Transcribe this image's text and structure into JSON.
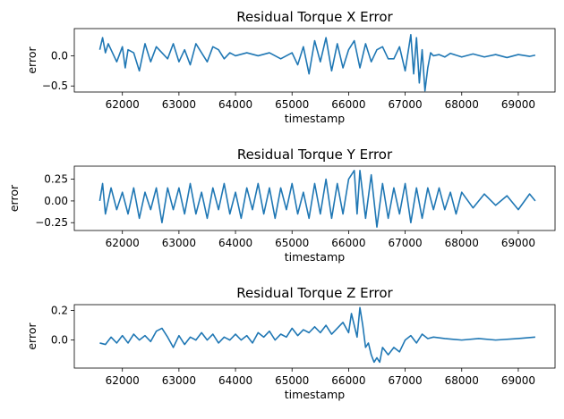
{
  "chart_data": [
    {
      "type": "line",
      "title": "Residual Torque X Error",
      "xlabel": "timestamp",
      "ylabel": "error",
      "xlim": [
        61150,
        69650
      ],
      "ylim": [
        -0.6,
        0.45
      ],
      "xticks": [
        62000,
        63000,
        64000,
        65000,
        66000,
        67000,
        68000,
        69000
      ],
      "yticks": [
        -0.5,
        0.0
      ],
      "ytick_labels": [
        "−0.5",
        "0.0"
      ],
      "grid": false,
      "color": "#1f77b4",
      "series": [
        {
          "x": [
            61600,
            61650,
            61700,
            61750,
            61800,
            61900,
            62000,
            62050,
            62100,
            62200,
            62300,
            62400,
            62500,
            62600,
            62700,
            62800,
            62900,
            63000,
            63100,
            63200,
            63300,
            63400,
            63500,
            63600,
            63700,
            63800,
            63900,
            64000,
            64200,
            64400,
            64600,
            64800,
            65000,
            65100,
            65200,
            65300,
            65400,
            65500,
            65600,
            65700,
            65800,
            65900,
            66000,
            66100,
            66200,
            66300,
            66400,
            66500,
            66600,
            66700,
            66800,
            66900,
            67000,
            67100,
            67150,
            67200,
            67250,
            67300,
            67350,
            67400,
            67450,
            67500,
            67600,
            67700,
            67800,
            68000,
            68200,
            68400,
            68600,
            68800,
            69000,
            69200,
            69300
          ],
          "y": [
            0.1,
            0.3,
            0.05,
            0.2,
            0.1,
            -0.1,
            0.15,
            -0.2,
            0.1,
            0.05,
            -0.25,
            0.2,
            -0.1,
            0.15,
            0.05,
            -0.05,
            0.2,
            -0.1,
            0.1,
            -0.15,
            0.2,
            0.05,
            -0.1,
            0.15,
            0.1,
            -0.05,
            0.05,
            0.0,
            0.05,
            0.0,
            0.05,
            -0.05,
            0.05,
            -0.15,
            0.15,
            -0.3,
            0.25,
            -0.1,
            0.3,
            -0.25,
            0.2,
            -0.2,
            0.1,
            0.25,
            -0.2,
            0.2,
            -0.1,
            0.1,
            0.15,
            -0.05,
            -0.05,
            0.15,
            -0.25,
            0.35,
            -0.3,
            0.3,
            -0.45,
            0.1,
            -0.58,
            -0.2,
            0.05,
            0.0,
            0.02,
            -0.02,
            0.04,
            -0.02,
            0.03,
            -0.02,
            0.02,
            -0.03,
            0.02,
            -0.01,
            0.01
          ]
        }
      ]
    },
    {
      "type": "line",
      "title": "Residual Torque Y Error",
      "xlabel": "timestamp",
      "ylabel": "error",
      "xlim": [
        61150,
        69650
      ],
      "ylim": [
        -0.34,
        0.4
      ],
      "xticks": [
        62000,
        63000,
        64000,
        65000,
        66000,
        67000,
        68000,
        69000
      ],
      "yticks": [
        -0.25,
        0.0,
        0.25
      ],
      "ytick_labels": [
        "−0.25",
        "0.00",
        "0.25"
      ],
      "grid": false,
      "color": "#1f77b4",
      "series": [
        {
          "x": [
            61600,
            61650,
            61700,
            61800,
            61900,
            62000,
            62100,
            62200,
            62300,
            62400,
            62500,
            62600,
            62700,
            62800,
            62900,
            63000,
            63100,
            63200,
            63300,
            63400,
            63500,
            63600,
            63700,
            63800,
            63900,
            64000,
            64100,
            64200,
            64300,
            64400,
            64500,
            64600,
            64700,
            64800,
            64900,
            65000,
            65100,
            65200,
            65300,
            65400,
            65500,
            65600,
            65700,
            65800,
            65900,
            66000,
            66100,
            66150,
            66200,
            66300,
            66400,
            66500,
            66600,
            66700,
            66800,
            66900,
            67000,
            67100,
            67200,
            67300,
            67400,
            67500,
            67600,
            67700,
            67800,
            67900,
            68000,
            68200,
            68400,
            68600,
            68800,
            69000,
            69200,
            69300
          ],
          "y": [
            0.0,
            0.2,
            -0.15,
            0.15,
            -0.1,
            0.1,
            -0.15,
            0.15,
            -0.2,
            0.1,
            -0.1,
            0.15,
            -0.25,
            0.15,
            -0.1,
            0.15,
            -0.15,
            0.2,
            -0.15,
            0.1,
            -0.2,
            0.15,
            -0.1,
            0.2,
            -0.15,
            0.1,
            -0.2,
            0.15,
            -0.1,
            0.2,
            -0.15,
            0.15,
            -0.2,
            0.15,
            -0.1,
            0.2,
            -0.15,
            0.1,
            -0.2,
            0.2,
            -0.15,
            0.25,
            -0.2,
            0.2,
            -0.15,
            0.25,
            0.35,
            -0.15,
            0.35,
            -0.2,
            0.3,
            -0.3,
            0.2,
            -0.2,
            0.15,
            -0.15,
            0.2,
            -0.25,
            0.15,
            -0.2,
            0.15,
            -0.1,
            0.15,
            -0.1,
            0.1,
            -0.15,
            0.1,
            -0.08,
            0.08,
            -0.05,
            0.06,
            -0.1,
            0.08,
            0.0
          ]
        }
      ]
    },
    {
      "type": "line",
      "title": "Residual Torque Z Error",
      "xlabel": "timestamp",
      "ylabel": "error",
      "xlim": [
        61150,
        69650
      ],
      "ylim": [
        -0.19,
        0.24
      ],
      "xticks": [
        62000,
        63000,
        64000,
        65000,
        66000,
        67000,
        68000,
        69000
      ],
      "yticks": [
        0.0,
        0.2
      ],
      "ytick_labels": [
        "0.0",
        "0.2"
      ],
      "grid": false,
      "color": "#1f77b4",
      "series": [
        {
          "x": [
            61600,
            61700,
            61800,
            61900,
            62000,
            62100,
            62200,
            62300,
            62400,
            62500,
            62600,
            62700,
            62800,
            62900,
            63000,
            63100,
            63200,
            63300,
            63400,
            63500,
            63600,
            63700,
            63800,
            63900,
            64000,
            64100,
            64200,
            64300,
            64400,
            64500,
            64600,
            64700,
            64800,
            64900,
            65000,
            65100,
            65200,
            65300,
            65400,
            65500,
            65600,
            65700,
            65800,
            65900,
            66000,
            66050,
            66100,
            66150,
            66200,
            66250,
            66300,
            66350,
            66400,
            66450,
            66500,
            66550,
            66600,
            66700,
            66800,
            66900,
            67000,
            67100,
            67200,
            67300,
            67400,
            67500,
            67700,
            68000,
            68300,
            68600,
            69000,
            69300
          ],
          "y": [
            -0.02,
            -0.03,
            0.02,
            -0.02,
            0.03,
            -0.02,
            0.04,
            0.0,
            0.03,
            -0.01,
            0.06,
            0.08,
            0.02,
            -0.05,
            0.03,
            -0.03,
            0.02,
            0.0,
            0.05,
            0.0,
            0.04,
            -0.02,
            0.02,
            0.0,
            0.04,
            0.0,
            0.03,
            -0.02,
            0.05,
            0.02,
            0.06,
            0.0,
            0.04,
            0.02,
            0.08,
            0.03,
            0.07,
            0.05,
            0.09,
            0.05,
            0.1,
            0.04,
            0.08,
            0.12,
            0.05,
            0.18,
            0.1,
            0.02,
            0.22,
            0.1,
            -0.05,
            -0.02,
            -0.1,
            -0.15,
            -0.12,
            -0.15,
            -0.05,
            -0.1,
            -0.05,
            -0.08,
            0.0,
            0.03,
            -0.02,
            0.04,
            0.01,
            0.02,
            0.01,
            0.0,
            0.01,
            0.0,
            0.01,
            0.02
          ]
        }
      ]
    }
  ]
}
